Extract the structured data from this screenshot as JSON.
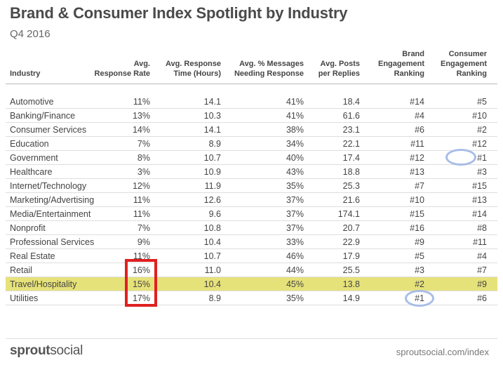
{
  "title": "Brand & Consumer Index Spotlight by Industry",
  "subtitle": "Q4 2016",
  "chart_data": {
    "type": "table",
    "columns": [
      {
        "key": "industry",
        "lines": [
          "Industry"
        ]
      },
      {
        "key": "response_rate",
        "lines": [
          "Avg.",
          "Response Rate"
        ]
      },
      {
        "key": "response_time",
        "lines": [
          "Avg. Response",
          "Time (Hours)"
        ]
      },
      {
        "key": "pct_needing",
        "lines": [
          "Avg. % Messages",
          "Needing Response"
        ]
      },
      {
        "key": "posts_per_reply",
        "lines": [
          "Avg. Posts",
          "per Replies"
        ]
      },
      {
        "key": "brand_rank",
        "lines": [
          "Brand",
          "Engagement",
          "Ranking"
        ]
      },
      {
        "key": "consumer_rank",
        "lines": [
          "Consumer",
          "Engagement",
          "Ranking"
        ]
      }
    ],
    "rows": [
      [
        "Automotive",
        "11%",
        "14.1",
        "41%",
        "18.4",
        "#14",
        "#5"
      ],
      [
        "Banking/Finance",
        "13%",
        "10.3",
        "41%",
        "61.6",
        "#4",
        "#10"
      ],
      [
        "Consumer Services",
        "14%",
        "14.1",
        "38%",
        "23.1",
        "#6",
        "#2"
      ],
      [
        "Education",
        "7%",
        "8.9",
        "34%",
        "22.1",
        "#11",
        "#12"
      ],
      [
        "Government",
        "8%",
        "10.7",
        "40%",
        "17.4",
        "#12",
        "#1"
      ],
      [
        "Healthcare",
        "3%",
        "10.9",
        "43%",
        "18.8",
        "#13",
        "#3"
      ],
      [
        "Internet/Technology",
        "12%",
        "11.9",
        "35%",
        "25.3",
        "#7",
        "#15"
      ],
      [
        "Marketing/Advertising",
        "11%",
        "12.6",
        "37%",
        "21.6",
        "#10",
        "#13"
      ],
      [
        "Media/Entertainment",
        "11%",
        "9.6",
        "37%",
        "174.1",
        "#15",
        "#14"
      ],
      [
        "Nonprofit",
        "7%",
        "10.8",
        "37%",
        "20.7",
        "#16",
        "#8"
      ],
      [
        "Professional Services",
        "9%",
        "10.4",
        "33%",
        "22.9",
        "#9",
        "#11"
      ],
      [
        "Real Estate",
        "11%",
        "10.7",
        "46%",
        "17.9",
        "#5",
        "#4"
      ],
      [
        "Retail",
        "16%",
        "11.0",
        "44%",
        "25.5",
        "#3",
        "#7"
      ],
      [
        "Travel/Hospitality",
        "15%",
        "10.4",
        "45%",
        "13.8",
        "#2",
        "#9"
      ],
      [
        "Utilities",
        "17%",
        "8.9",
        "35%",
        "14.9",
        "#1",
        "#6"
      ]
    ],
    "highlighted_row": "Travel/Hospitality",
    "highlight_color": "#e6e27a",
    "annotations": [
      {
        "type": "box",
        "color": "#e02020",
        "column": "response_rate",
        "rows": [
          "Retail",
          "Travel/Hospitality",
          "Utilities"
        ]
      },
      {
        "type": "oval",
        "color": "#a8bce8",
        "column": "consumer_rank",
        "row": "Government"
      },
      {
        "type": "oval",
        "color": "#a8bce8",
        "column": "brand_rank",
        "row": "Utilities"
      }
    ]
  },
  "footer": {
    "brand_part1": "sprout",
    "brand_part2": "social",
    "url": "sproutsocial.com/index"
  }
}
